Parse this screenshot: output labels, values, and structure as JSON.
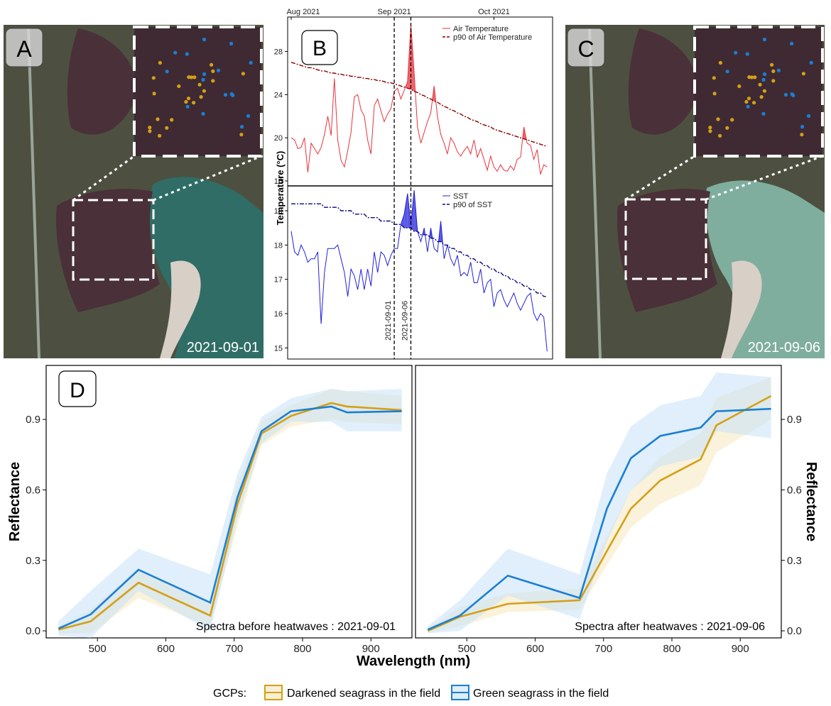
{
  "panels": {
    "a": {
      "letter": "A",
      "date": "2021-09-01"
    },
    "b": {
      "letter": "B"
    },
    "c": {
      "letter": "C",
      "date": "2021-09-06"
    },
    "d": {
      "letter": "D"
    }
  },
  "colors": {
    "air": "#e8323c",
    "air_p90": "#8b0000",
    "sst": "#2121d9",
    "sst_p90": "#0a0a80",
    "dark": "#d4a017",
    "green": "#1a7fd4",
    "water": "#2f6d66",
    "marsh": "#4a3038",
    "land": "#4d5040"
  },
  "ground_points": {
    "orange_count": 24,
    "blue_count": 16
  },
  "chart_data": [
    {
      "type": "line",
      "panel": "B-top",
      "ylabel": "Temperature (°C)",
      "xticks": [
        "Aug 2021",
        "Sep 2021",
        "Oct 2021"
      ],
      "yticks": [
        "16",
        "20",
        "24",
        "28"
      ],
      "ylim": [
        15.8,
        31.0
      ],
      "xlim_days": [
        0,
        78
      ],
      "vlines": [
        {
          "label": "2021-09-01",
          "day": 31
        },
        {
          "label": "2021-09-06",
          "day": 36
        }
      ],
      "series": [
        {
          "name": "Air Temperature",
          "values": [
            20.0,
            19.8,
            19.0,
            19.1,
            20.0,
            16.8,
            19.5,
            19.0,
            18.5,
            19.1,
            20.3,
            22.0,
            20.2,
            25.5,
            19.8,
            17.9,
            17.3,
            18.8,
            20.5,
            23.8,
            24.0,
            22.6,
            22.0,
            19.8,
            18.5,
            23.0,
            23.6,
            22.5,
            21.5,
            22.2,
            22.7,
            24.3,
            24.6,
            23.6,
            24.4,
            25.2,
            30.5,
            26.0,
            21.0,
            19.5,
            20.5,
            21.5,
            22.3,
            24.8,
            22.0,
            20.3,
            19.5,
            18.5,
            20.0,
            19.5,
            18.7,
            18.3,
            18.8,
            19.2,
            18.5,
            19.8,
            18.2,
            19.0,
            18.0,
            17.0,
            18.3,
            17.3,
            16.9,
            17.5,
            17.0,
            16.9,
            17.4,
            17.0,
            18.0,
            18.2,
            21.0,
            19.5,
            19.3,
            18.0,
            18.9,
            16.6,
            17.5,
            17.3
          ]
        },
        {
          "name": "p90 of Air Temperature",
          "values": [
            27.0,
            26.9,
            26.8,
            26.7,
            26.6,
            26.5,
            26.5,
            26.4,
            26.3,
            26.2,
            26.2,
            26.1,
            26.0,
            26.0,
            25.9,
            25.9,
            25.8,
            25.8,
            25.7,
            25.7,
            25.6,
            25.6,
            25.5,
            25.5,
            25.4,
            25.4,
            25.3,
            25.3,
            25.2,
            25.1,
            25.1,
            25.0,
            24.9,
            24.8,
            24.7,
            24.6,
            24.5,
            24.3,
            24.2,
            24.0,
            23.9,
            23.7,
            23.6,
            23.4,
            23.3,
            23.1,
            22.9,
            22.8,
            22.6,
            22.5,
            22.3,
            22.2,
            22.0,
            21.9,
            21.7,
            21.6,
            21.5,
            21.3,
            21.2,
            21.1,
            21.0,
            20.8,
            20.7,
            20.6,
            20.5,
            20.4,
            20.3,
            20.2,
            20.1,
            20.0,
            19.9,
            19.8,
            19.7,
            19.6,
            19.5,
            19.4,
            19.3,
            19.2
          ]
        }
      ]
    },
    {
      "type": "line",
      "panel": "B-bottom",
      "yticks": [
        "15",
        "16",
        "17",
        "18",
        "19"
      ],
      "ylim": [
        14.8,
        19.6
      ],
      "xlim_days": [
        0,
        78
      ],
      "series": [
        {
          "name": "SST",
          "values": [
            18.4,
            17.8,
            17.7,
            18.0,
            17.8,
            17.5,
            17.6,
            17.6,
            17.8,
            15.7,
            17.2,
            17.9,
            17.9,
            17.9,
            18.0,
            17.6,
            17.2,
            16.5,
            17.3,
            17.1,
            16.7,
            17.3,
            16.7,
            17.3,
            16.8,
            17.8,
            17.2,
            17.8,
            17.7,
            17.4,
            17.7,
            17.9,
            17.9,
            18.6,
            18.9,
            19.5,
            18.6,
            19.6,
            18.4,
            18.1,
            18.5,
            17.8,
            18.5,
            17.9,
            17.8,
            18.7,
            17.6,
            18.0,
            17.6,
            17.4,
            17.7,
            17.1,
            17.2,
            17.1,
            17.5,
            16.9,
            16.9,
            17.3,
            16.6,
            16.9,
            17.0,
            16.2,
            16.6,
            16.7,
            16.4,
            16.2,
            16.4,
            16.6,
            16.3,
            16.1,
            16.3,
            16.5,
            16.6,
            16.0,
            15.8,
            16.0,
            15.9,
            14.9
          ]
        },
        {
          "name": "p90 of SST",
          "values": [
            19.2,
            19.2,
            19.2,
            19.2,
            19.2,
            19.2,
            19.2,
            19.2,
            19.2,
            19.2,
            19.1,
            19.1,
            19.1,
            19.1,
            19.1,
            19.0,
            19.0,
            19.0,
            19.0,
            18.9,
            18.9,
            18.9,
            18.9,
            18.8,
            18.8,
            18.8,
            18.8,
            18.7,
            18.7,
            18.7,
            18.7,
            18.6,
            18.6,
            18.6,
            18.5,
            18.5,
            18.5,
            18.4,
            18.4,
            18.3,
            18.3,
            18.3,
            18.2,
            18.2,
            18.1,
            18.1,
            18.0,
            18.0,
            17.9,
            17.9,
            17.8,
            17.8,
            17.7,
            17.7,
            17.6,
            17.6,
            17.5,
            17.5,
            17.4,
            17.4,
            17.3,
            17.3,
            17.2,
            17.2,
            17.1,
            17.1,
            17.0,
            17.0,
            16.9,
            16.9,
            16.8,
            16.8,
            16.7,
            16.7,
            16.6,
            16.6,
            16.5,
            16.5
          ]
        }
      ]
    },
    {
      "type": "line",
      "panel": "D-left",
      "annotation": "Spectra before heatwaves : 2021-09-01",
      "xlabel": "Wavelength (nm)",
      "ylabel": "Reflectance",
      "xticks": [
        "500",
        "600",
        "700",
        "800",
        "900"
      ],
      "yticks": [
        "0.0",
        "0.3",
        "0.6",
        "0.9"
      ],
      "xlim": [
        425,
        960
      ],
      "ylim": [
        -0.03,
        1.13
      ],
      "x": [
        443,
        490,
        560,
        665,
        705,
        740,
        783,
        842,
        865,
        945
      ],
      "series": [
        {
          "name": "Darkened seagrass in the field",
          "values": [
            0.005,
            0.04,
            0.205,
            0.065,
            0.54,
            0.84,
            0.915,
            0.97,
            0.955,
            0.94
          ],
          "lower": [
            -0.01,
            -0.01,
            0.14,
            0.02,
            0.45,
            0.79,
            0.87,
            0.9,
            0.89,
            0.88
          ],
          "upper": [
            0.02,
            0.09,
            0.27,
            0.11,
            0.63,
            0.89,
            0.96,
            1.03,
            1.02,
            1.0
          ]
        },
        {
          "name": "Green seagrass in the field",
          "values": [
            0.01,
            0.07,
            0.26,
            0.12,
            0.57,
            0.85,
            0.935,
            0.955,
            0.93,
            0.935
          ],
          "lower": [
            -0.02,
            -0.03,
            0.17,
            0.0,
            0.48,
            0.8,
            0.89,
            0.89,
            0.85,
            0.85
          ],
          "upper": [
            0.04,
            0.17,
            0.35,
            0.24,
            0.67,
            0.91,
            0.99,
            1.03,
            1.02,
            1.03
          ]
        }
      ]
    },
    {
      "type": "line",
      "panel": "D-right",
      "annotation": "Spectra after heatwaves : 2021-09-06",
      "ylabel": "Reflectance",
      "xticks": [
        "500",
        "600",
        "700",
        "800",
        "900"
      ],
      "yticks": [
        "0.0",
        "0.3",
        "0.6",
        "0.9"
      ],
      "xlim": [
        425,
        960
      ],
      "ylim": [
        -0.03,
        1.13
      ],
      "x": [
        443,
        490,
        560,
        665,
        705,
        740,
        783,
        842,
        865,
        945
      ],
      "series": [
        {
          "name": "Darkened seagrass in the field",
          "values": [
            0.0,
            0.06,
            0.115,
            0.13,
            0.34,
            0.52,
            0.64,
            0.73,
            0.875,
            1.0
          ],
          "lower": [
            -0.01,
            0.02,
            0.08,
            0.09,
            0.28,
            0.44,
            0.54,
            0.62,
            0.76,
            0.9
          ],
          "upper": [
            0.01,
            0.1,
            0.16,
            0.18,
            0.4,
            0.6,
            0.74,
            0.84,
            0.99,
            1.08
          ]
        },
        {
          "name": "Green seagrass in the field",
          "values": [
            0.005,
            0.065,
            0.235,
            0.14,
            0.52,
            0.735,
            0.83,
            0.865,
            0.935,
            0.945
          ],
          "lower": [
            -0.01,
            0.0,
            0.15,
            0.05,
            0.38,
            0.6,
            0.7,
            0.74,
            0.85,
            0.82
          ],
          "upper": [
            0.02,
            0.13,
            0.35,
            0.24,
            0.67,
            0.87,
            0.96,
            1.0,
            1.1,
            1.08
          ]
        }
      ]
    }
  ],
  "legend": {
    "prefix": "GCPs:",
    "items": [
      "Darkened seagrass in the field",
      "Green seagrass in the field"
    ]
  }
}
